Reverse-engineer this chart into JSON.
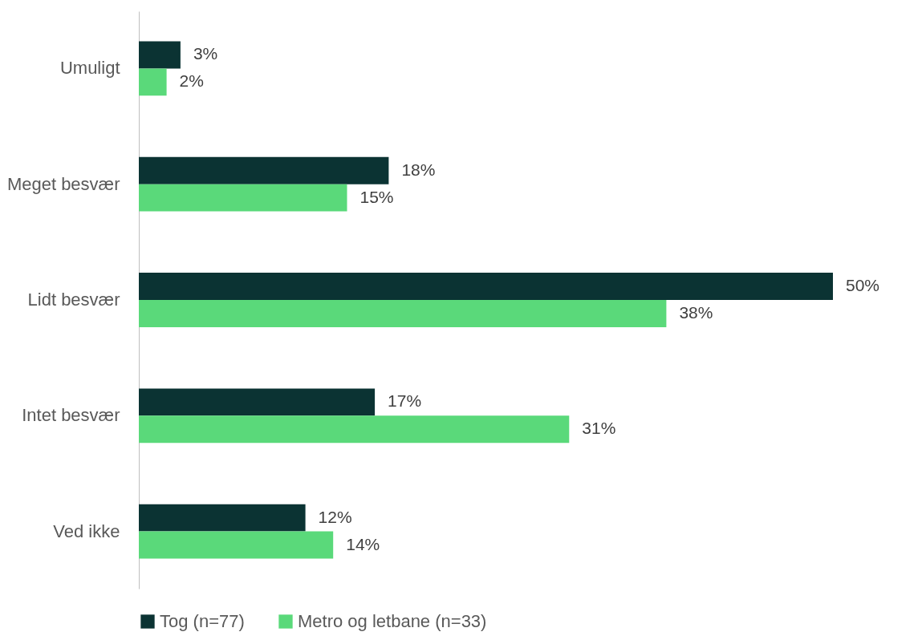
{
  "chart_data": {
    "type": "bar",
    "orientation": "horizontal",
    "categories": [
      "Umuligt",
      "Meget besvær",
      "Lidt besvær",
      "Intet besvær",
      "Ved ikke"
    ],
    "series": [
      {
        "name": "Tog (n=77)",
        "color": "#0b3333",
        "values": [
          3,
          18,
          50,
          17,
          12
        ],
        "value_labels": [
          "3%",
          "18%",
          "50%",
          "17%",
          "12%"
        ]
      },
      {
        "name": "Metro og letbane (n=33)",
        "color": "#5ad97a",
        "values": [
          2,
          15,
          38,
          31,
          14
        ],
        "value_labels": [
          "2%",
          "15%",
          "38%",
          "31%",
          "14%"
        ]
      }
    ],
    "legend": "bottom",
    "grid": false
  }
}
